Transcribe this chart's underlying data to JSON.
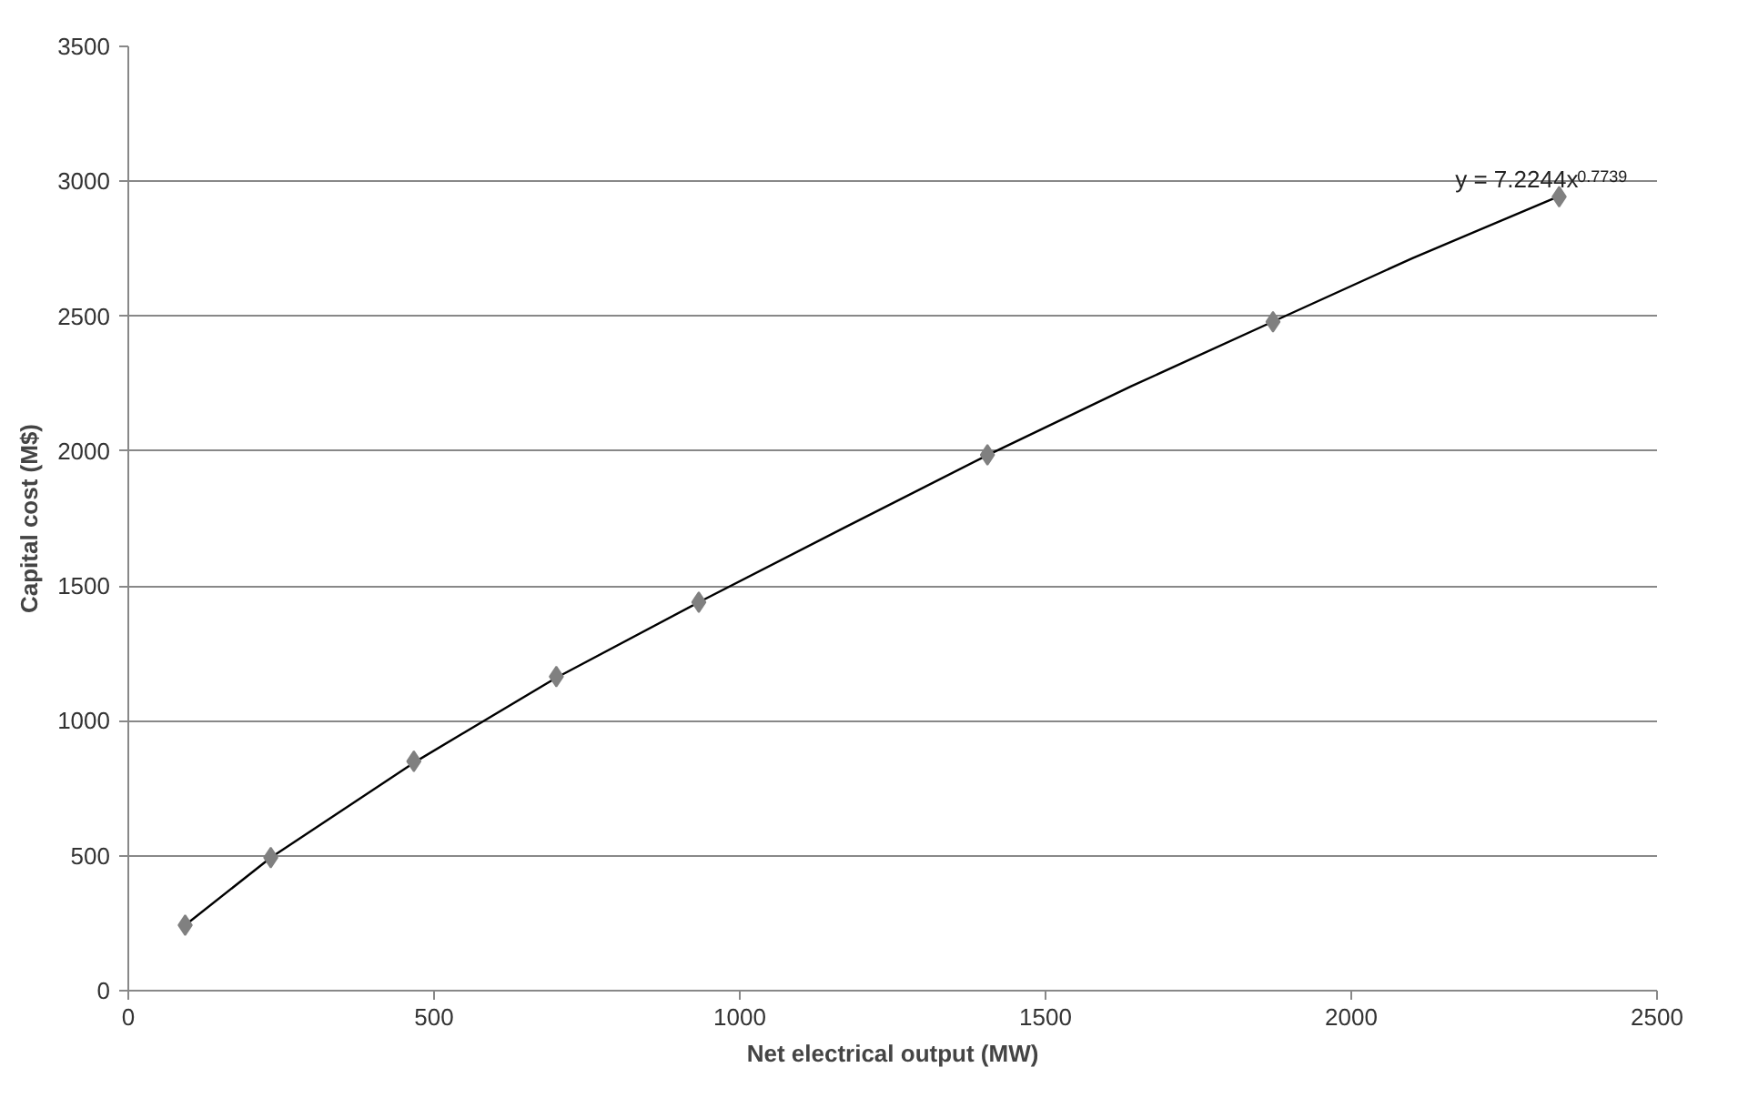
{
  "chart_data": {
    "type": "scatter",
    "xlabel": "Net electrical output (MW)",
    "ylabel": "Capital cost (M$)",
    "xlim": [
      0,
      2500
    ],
    "xticks": [
      0,
      500,
      1000,
      1500,
      2000,
      2500
    ],
    "ylim": [
      0,
      3500
    ],
    "yticks": [
      0,
      500,
      1000,
      1500,
      2000,
      2500,
      3000,
      3500
    ],
    "grid": "y",
    "annotations": [
      "y = 7.2244x$^{0.7739}$"
    ],
    "series": [
      {
        "type": "line",
        "color": "#000000",
        "line_style": "solid",
        "marker": "none",
        "x": [
          93,
          233,
          467,
          700,
          933,
          1170,
          1405,
          1640,
          1872,
          2100,
          2340
        ],
        "values": [
          243,
          493,
          845,
          1160,
          1440,
          1715,
          1985,
          2240,
          2480,
          2715,
          2945
        ]
      },
      {
        "color": "#808080",
        "marker": "diamond",
        "x": [
          93,
          233,
          467,
          700,
          933,
          1405,
          1872,
          2340
        ],
        "values": [
          243,
          493,
          850,
          1164,
          1440,
          1986,
          2479,
          2943
        ]
      }
    ]
  }
}
